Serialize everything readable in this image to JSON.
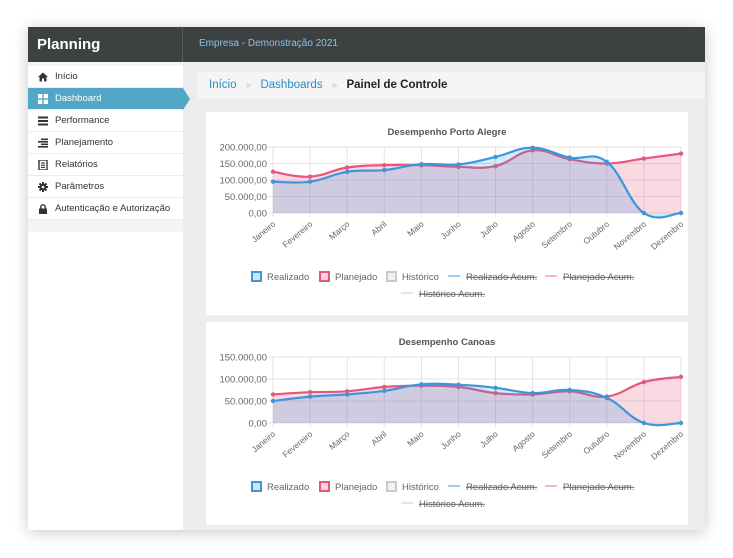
{
  "app": {
    "title": "Planning",
    "company": "Empresa - Demonstração 2021"
  },
  "sidebar": {
    "items": [
      {
        "label": "Início",
        "icon": "home-icon",
        "active": false
      },
      {
        "label": "Dashboard",
        "icon": "grid-icon",
        "active": true
      },
      {
        "label": "Performance",
        "icon": "performance-icon",
        "active": false
      },
      {
        "label": "Planejamento",
        "icon": "list-icon",
        "active": false
      },
      {
        "label": "Relatórios",
        "icon": "report-icon",
        "active": false
      },
      {
        "label": "Parâmetros",
        "icon": "gear-icon",
        "active": false
      },
      {
        "label": "Autenticação e Autorização",
        "icon": "lock-icon",
        "active": false
      }
    ]
  },
  "breadcrumb": {
    "items": [
      "Início",
      "Dashboards"
    ],
    "current": "Painel de Controle"
  },
  "colors": {
    "realizado": "#3b97dc",
    "planejado": "#e6577d",
    "historico": "#c9cbcf",
    "realizado_acum": "#9ad0f5",
    "planejado_acum": "#ffb1c1",
    "historico_acum": "#e4e5e7"
  },
  "chart_data": [
    {
      "type": "area",
      "title": "Desempenho Porto Alegre",
      "categories": [
        "Janeiro",
        "Fevereiro",
        "Março",
        "Abril",
        "Maio",
        "Junho",
        "Julho",
        "Agosto",
        "Setembro",
        "Outubro",
        "Novembro",
        "Dezembro"
      ],
      "yticks": [
        "200.000,00",
        "150.000,00",
        "100.000,00",
        "50.000,00",
        "0,00"
      ],
      "ylim": [
        0,
        200000
      ],
      "grid": true,
      "legend_position": "bottom",
      "series": [
        {
          "name": "Realizado",
          "values": [
            95000,
            95000,
            125000,
            130000,
            148000,
            147000,
            170000,
            198000,
            168000,
            155000,
            0,
            0
          ]
        },
        {
          "name": "Planejado",
          "values": [
            125000,
            110000,
            138000,
            145000,
            145000,
            140000,
            142000,
            190000,
            163000,
            150000,
            165000,
            180000
          ]
        }
      ],
      "legend": [
        "Realizado",
        "Planejado",
        "Histórico",
        "Realizado Acum.",
        "Planejado Acum.",
        "Histórico Acum."
      ]
    },
    {
      "type": "area",
      "title": "Desempenho Canoas",
      "categories": [
        "Janeiro",
        "Fevereiro",
        "Março",
        "Abril",
        "Maio",
        "Junho",
        "Julho",
        "Agosto",
        "Setembro",
        "Outubro",
        "Novembro",
        "Dezembro"
      ],
      "yticks": [
        "150.000,00",
        "100.000,00",
        "50.000,00",
        "0,00"
      ],
      "ylim": [
        0,
        150000
      ],
      "grid": true,
      "legend_position": "bottom",
      "series": [
        {
          "name": "Realizado",
          "values": [
            50000,
            60000,
            65000,
            73000,
            88000,
            87000,
            80000,
            68000,
            75000,
            57000,
            0,
            0
          ]
        },
        {
          "name": "Planejado",
          "values": [
            65000,
            70000,
            72000,
            82000,
            85000,
            82000,
            68000,
            65000,
            72000,
            60000,
            93000,
            105000
          ]
        }
      ],
      "legend": [
        "Realizado",
        "Planejado",
        "Histórico",
        "Realizado Acum.",
        "Planejado Acum.",
        "Histórico Acum."
      ]
    }
  ]
}
